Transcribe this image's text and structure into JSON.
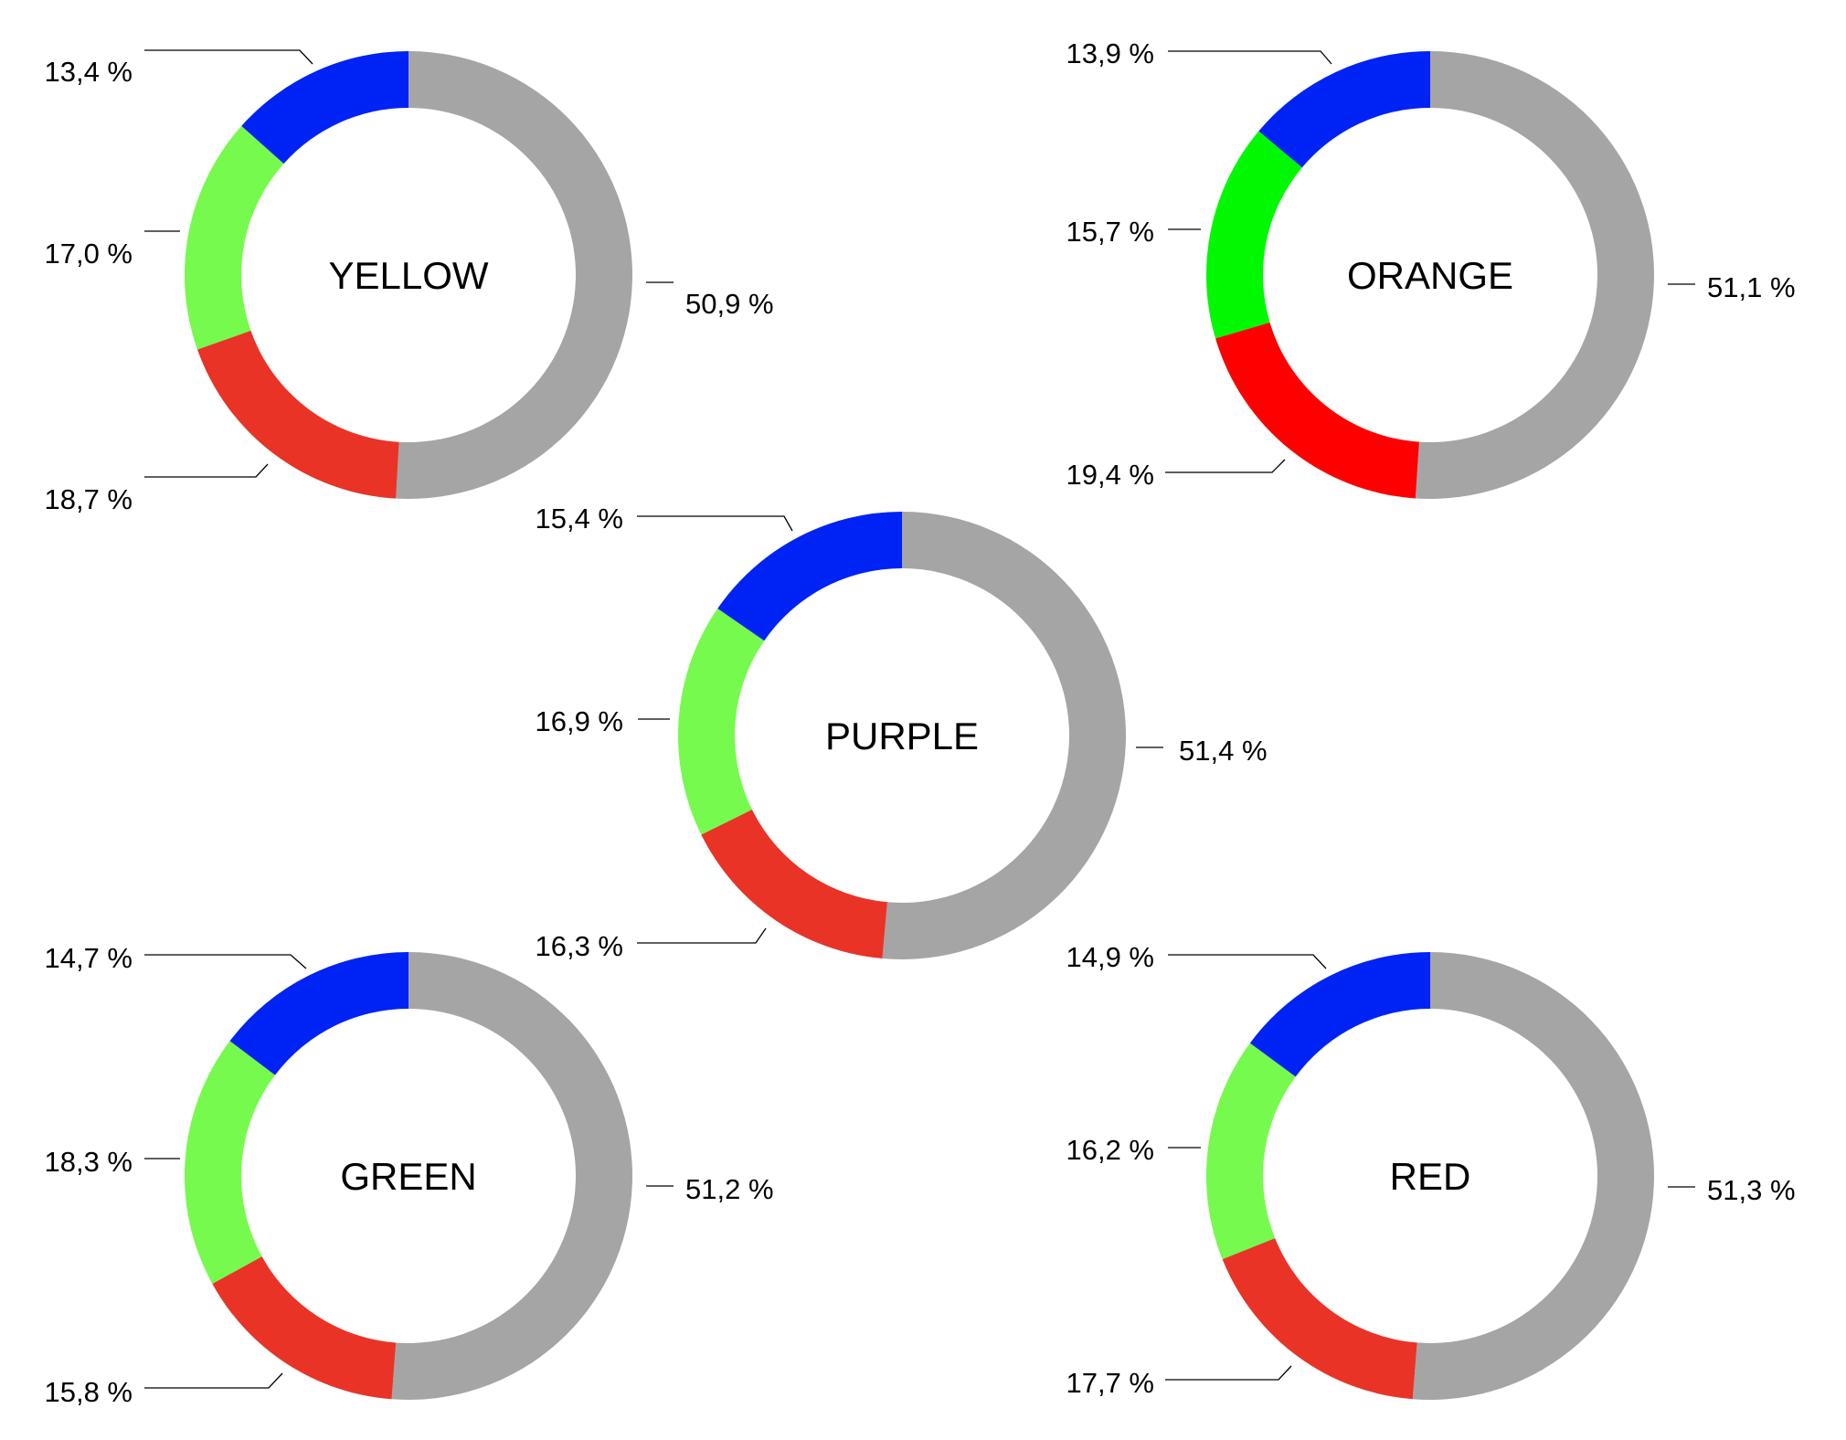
{
  "chart_data": [
    {
      "type": "donut",
      "center_label": "YELLOW",
      "segments": [
        {
          "value": 50.9,
          "label": "50,9 %",
          "color": "#a5a5a5"
        },
        {
          "value": 18.7,
          "label": "18,7 %",
          "color": "#e93327"
        },
        {
          "value": 17.0,
          "label": "17,0 %",
          "color": "#75fa4d"
        },
        {
          "value": 13.4,
          "label": "13,4 %",
          "color": "#0023f5"
        }
      ]
    },
    {
      "type": "donut",
      "center_label": "ORANGE",
      "segments": [
        {
          "value": 51.1,
          "label": "51,1 %",
          "color": "#a5a5a5"
        },
        {
          "value": 19.4,
          "label": "19,4 %",
          "color": "#ff0000"
        },
        {
          "value": 15.7,
          "label": "15,7 %",
          "color": "#00f900"
        },
        {
          "value": 13.9,
          "label": "13,9 %",
          "color": "#0023f5"
        }
      ]
    },
    {
      "type": "donut",
      "center_label": "PURPLE",
      "segments": [
        {
          "value": 51.4,
          "label": "51,4 %",
          "color": "#a5a5a5"
        },
        {
          "value": 16.3,
          "label": "16,3 %",
          "color": "#e93327"
        },
        {
          "value": 16.9,
          "label": "16,9 %",
          "color": "#75fa4d"
        },
        {
          "value": 15.4,
          "label": "15,4 %",
          "color": "#0023f5"
        }
      ]
    },
    {
      "type": "donut",
      "center_label": "GREEN",
      "segments": [
        {
          "value": 51.2,
          "label": "51,2 %",
          "color": "#a5a5a5"
        },
        {
          "value": 15.8,
          "label": "15,8 %",
          "color": "#e93327"
        },
        {
          "value": 18.3,
          "label": "18,3 %",
          "color": "#75fa4d"
        },
        {
          "value": 14.7,
          "label": "14,7 %",
          "color": "#0023f5"
        }
      ]
    },
    {
      "type": "donut",
      "center_label": "RED",
      "segments": [
        {
          "value": 51.3,
          "label": "51,3 %",
          "color": "#a5a5a5"
        },
        {
          "value": 17.7,
          "label": "17,7 %",
          "color": "#e93327"
        },
        {
          "value": 16.2,
          "label": "16,2 %",
          "color": "#75fa4d"
        },
        {
          "value": 14.9,
          "label": "14,9 %",
          "color": "#0023f5"
        }
      ]
    }
  ]
}
